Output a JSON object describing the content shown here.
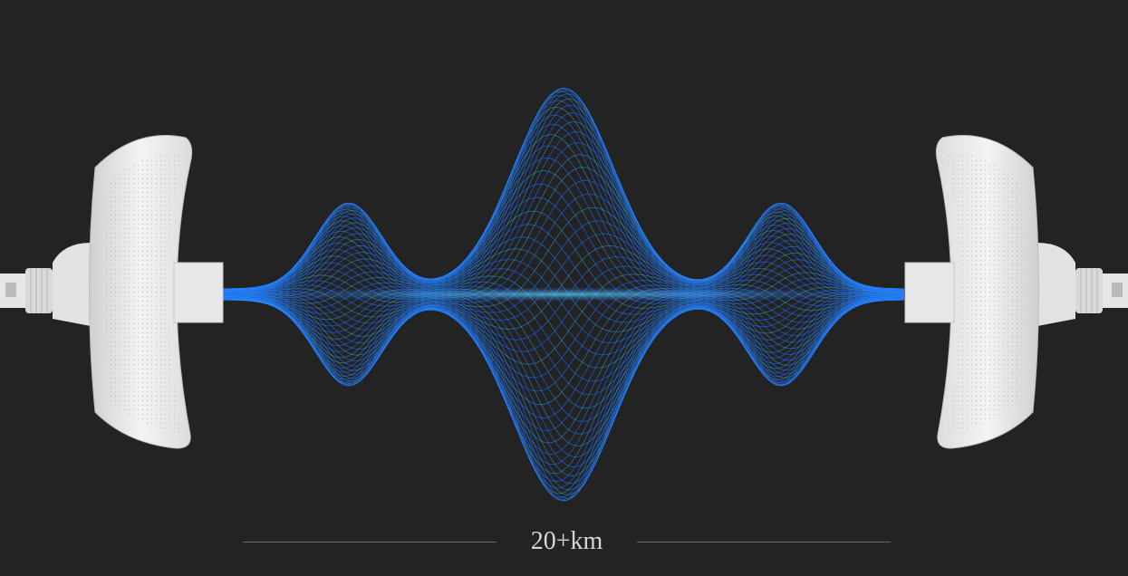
{
  "range_label": "20+km",
  "colors": {
    "background": "#232323",
    "wave": "#1f6bff",
    "wave_core": "#38c8ff",
    "device": "#eeeeee"
  },
  "icons": [
    "cpe-antenna-left",
    "cpe-antenna-right",
    "signal-wave"
  ]
}
